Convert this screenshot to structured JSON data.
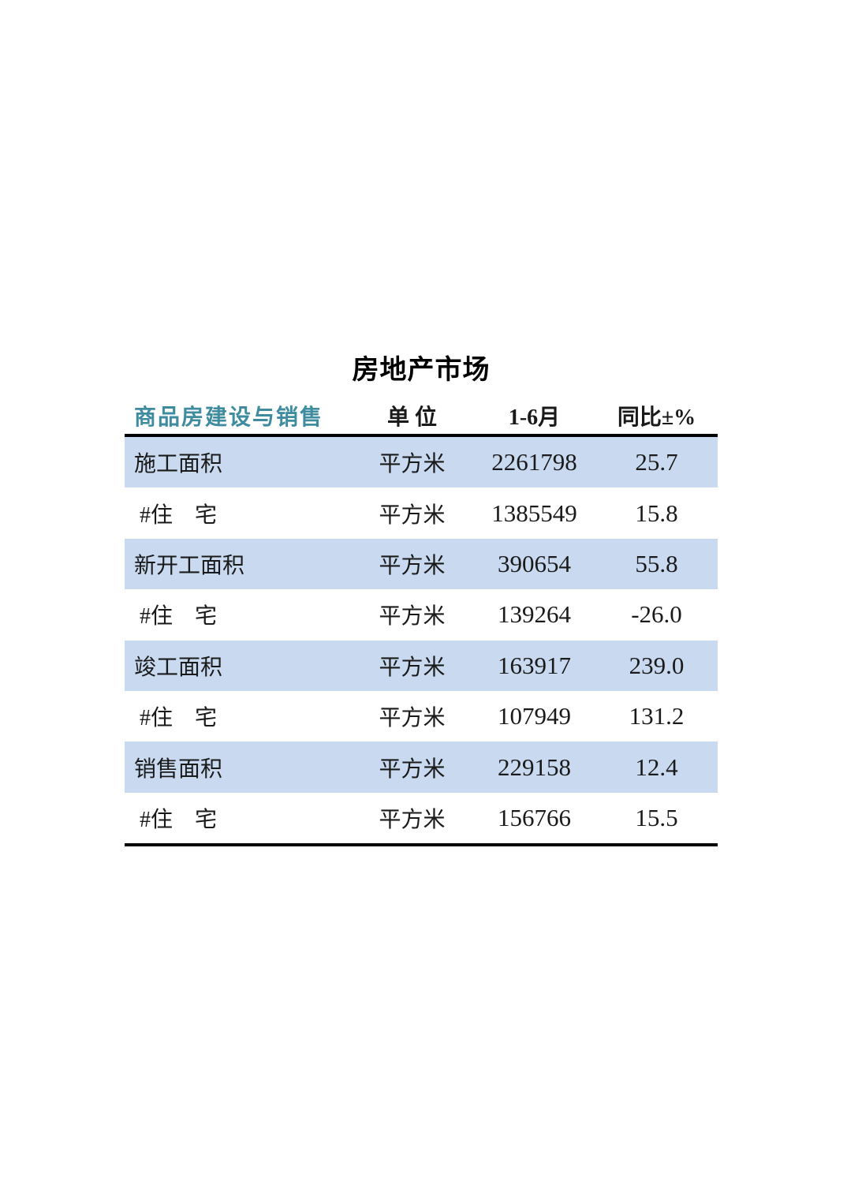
{
  "page": {
    "title": "房地产市场"
  },
  "theme": {
    "accent_color": "#3f8ca0",
    "row_highlight_color": "#c9daf0",
    "rule_color": "#000000"
  },
  "table": {
    "columns": [
      {
        "label": "商品房建设与销售"
      },
      {
        "label": "单 位"
      },
      {
        "label": "1-6月"
      },
      {
        "label": "同比±%"
      }
    ],
    "rows": [
      {
        "indicator": "施工面积",
        "unit": "平方米",
        "value": "2261798",
        "yoy": "25.7",
        "highlight": true
      },
      {
        "indicator": " #住　宅",
        "unit": "平方米",
        "value": "1385549",
        "yoy": "15.8",
        "highlight": false
      },
      {
        "indicator": "新开工面积",
        "unit": "平方米",
        "value": "390654",
        "yoy": "55.8",
        "highlight": true
      },
      {
        "indicator": " #住　宅",
        "unit": "平方米",
        "value": "139264",
        "yoy": "-26.0",
        "highlight": false
      },
      {
        "indicator": "竣工面积",
        "unit": "平方米",
        "value": "163917",
        "yoy": "239.0",
        "highlight": true
      },
      {
        "indicator": " #住　宅",
        "unit": "平方米",
        "value": "107949",
        "yoy": "131.2",
        "highlight": false
      },
      {
        "indicator": "销售面积",
        "unit": "平方米",
        "value": "229158",
        "yoy": "12.4",
        "highlight": true
      },
      {
        "indicator": " #住　宅",
        "unit": "平方米",
        "value": "156766",
        "yoy": "15.5",
        "highlight": false
      }
    ]
  }
}
